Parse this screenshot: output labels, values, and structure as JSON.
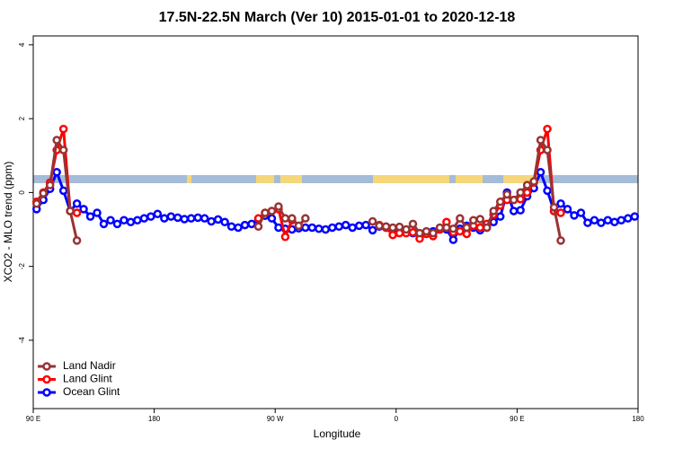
{
  "chart_data": {
    "type": "line",
    "title": "17.5N-22.5N March (Ver 10)   2015-01-01 to 2020-12-18",
    "x_label": "Longitude",
    "y_label": "XCO2 - MLO trend (ppm)",
    "xlim": [
      90,
      540
    ],
    "ylim": [
      -5.85,
      4.24
    ],
    "xticks": [
      {
        "value": 90,
        "label": "90 E"
      },
      180,
      {
        "value": 270,
        "label": "90 W"
      },
      {
        "value": 360,
        "label": "0"
      },
      {
        "value": 450,
        "label": "90 E"
      },
      {
        "value": 540,
        "label": "180"
      }
    ],
    "yticks": [
      -4,
      -2,
      0,
      2,
      4
    ],
    "legend": "bottom-left",
    "x": [
      92.5,
      97.5,
      102.5,
      107.5,
      112.5,
      117.5,
      122.5,
      127.5,
      132.5,
      137.5,
      142.5,
      147.5,
      152.5,
      157.5,
      162.5,
      167.5,
      172.5,
      177.5,
      182.5,
      187.5,
      192.5,
      197.5,
      202.5,
      207.5,
      212.5,
      217.5,
      222.5,
      227.5,
      232.5,
      237.5,
      242.5,
      247.5,
      252.5,
      257.5,
      262.5,
      267.5,
      272.5,
      277.5,
      282.5,
      287.5,
      292.5,
      297.5,
      302.5,
      307.5,
      312.5,
      317.5,
      322.5,
      327.5,
      332.5,
      337.5,
      342.5,
      347.5,
      352.5,
      357.5,
      362.5,
      367.5,
      372.5,
      377.5,
      382.5,
      387.5,
      392.5,
      397.5,
      402.5,
      407.5,
      412.5,
      417.5,
      422.5,
      427.5,
      432.5,
      437.5,
      442.5,
      447.5,
      452.5,
      457.5,
      462.5,
      467.5,
      472.5,
      477.5,
      482.5,
      487.5,
      492.5,
      497.5,
      502.5,
      507.5,
      512.5,
      517.5,
      522.5,
      527.5,
      532.5,
      537.5
    ],
    "series": [
      {
        "name": "Land Nadir",
        "color": "#993333",
        "values": [
          -0.3,
          -0.02,
          0.2,
          1.42,
          1.15,
          -0.5,
          -1.3,
          null,
          null,
          null,
          null,
          null,
          null,
          null,
          null,
          null,
          null,
          null,
          null,
          null,
          null,
          null,
          null,
          null,
          null,
          null,
          null,
          null,
          null,
          null,
          null,
          null,
          null,
          -0.92,
          -0.55,
          -0.5,
          -0.38,
          -0.7,
          -0.7,
          -0.9,
          -0.7,
          null,
          null,
          null,
          null,
          null,
          null,
          null,
          null,
          null,
          -0.78,
          -0.9,
          -0.92,
          -0.95,
          -0.93,
          -1.0,
          -0.85,
          -1.1,
          -1.05,
          -1.1,
          -0.95,
          -0.95,
          -0.98,
          -0.7,
          -0.95,
          -0.75,
          -0.72,
          -0.95,
          -0.5,
          -0.25,
          -0.05,
          -0.2,
          0.0,
          0.2,
          0.3,
          1.42,
          1.15,
          -0.4,
          -1.3,
          null,
          null,
          null,
          null,
          null,
          null,
          null,
          null,
          null,
          null,
          null
        ]
      },
      {
        "name": "Land Glint",
        "color": "#ff0000",
        "values": [
          -0.25,
          0.0,
          0.27,
          1.15,
          1.72,
          -0.5,
          -0.55,
          null,
          null,
          null,
          null,
          null,
          null,
          null,
          null,
          null,
          null,
          null,
          null,
          null,
          null,
          null,
          null,
          null,
          null,
          null,
          null,
          null,
          null,
          null,
          null,
          null,
          null,
          -0.7,
          -0.55,
          -0.5,
          -0.45,
          -1.2,
          -0.75,
          null,
          null,
          null,
          null,
          null,
          null,
          null,
          null,
          null,
          null,
          null,
          null,
          -0.88,
          -0.95,
          -1.15,
          -1.1,
          -1.1,
          -1.08,
          -1.25,
          -1.12,
          -1.18,
          -1.0,
          -0.8,
          -1.08,
          -1.05,
          -1.12,
          -0.9,
          -0.95,
          -0.85,
          -0.6,
          -0.35,
          -0.2,
          -0.2,
          -0.18,
          0.0,
          0.27,
          1.15,
          1.72,
          -0.5,
          -0.55,
          null,
          null,
          null,
          null,
          null,
          null,
          null,
          null,
          null,
          null,
          null
        ]
      },
      {
        "name": "Ocean Glint",
        "color": "#0000ff",
        "values": [
          -0.45,
          -0.2,
          0.1,
          0.55,
          0.05,
          -0.5,
          -0.3,
          -0.45,
          -0.65,
          -0.55,
          -0.85,
          -0.75,
          -0.85,
          -0.75,
          -0.8,
          -0.75,
          -0.7,
          -0.65,
          -0.58,
          -0.7,
          -0.65,
          -0.68,
          -0.72,
          -0.7,
          -0.68,
          -0.7,
          -0.78,
          -0.73,
          -0.8,
          -0.92,
          -0.95,
          -0.88,
          -0.85,
          -0.73,
          -0.63,
          -0.7,
          -0.95,
          -0.98,
          -1.0,
          -0.97,
          -0.95,
          -0.95,
          -0.98,
          -1.0,
          -0.95,
          -0.92,
          -0.88,
          -0.95,
          -0.9,
          -0.88,
          -1.02,
          -0.92,
          -0.95,
          -1.0,
          -1.05,
          -1.05,
          -1.1,
          -1.12,
          -1.1,
          -1.05,
          -1.0,
          -1.0,
          -1.28,
          -0.98,
          -0.9,
          -0.95,
          -1.02,
          -0.95,
          -0.8,
          -0.65,
          0.0,
          -0.5,
          -0.48,
          -0.1,
          0.12,
          0.55,
          0.05,
          -0.5,
          -0.3,
          -0.45,
          -0.62,
          -0.55,
          -0.82,
          -0.75,
          -0.82,
          -0.75,
          -0.8,
          -0.75,
          -0.7,
          -0.65
        ]
      }
    ]
  }
}
